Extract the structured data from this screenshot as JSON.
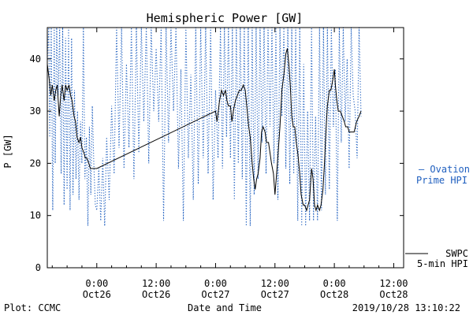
{
  "chart_data": {
    "type": "line",
    "title": "Hemispheric Power [GW]",
    "xlabel": "Date and Time",
    "ylabel": "P [GW]",
    "ylim": [
      0,
      46
    ],
    "yticks": [
      0,
      10,
      20,
      30,
      40
    ],
    "xticks": [
      {
        "hour": 0,
        "time": "0:00",
        "date": "Oct26"
      },
      {
        "hour": 12,
        "time": "12:00",
        "date": "Oct26"
      },
      {
        "hour": 24,
        "time": "0:00",
        "date": "Oct27"
      },
      {
        "hour": 36,
        "time": "12:00",
        "date": "Oct27"
      },
      {
        "hour": 48,
        "time": "0:00",
        "date": "Oct28"
      },
      {
        "hour": 60,
        "time": "12:00",
        "date": "Oct28"
      }
    ],
    "x_units": "hours since 2019-10-26 00:00",
    "xlim": [
      -10,
      62
    ],
    "series": [
      {
        "name": "SWPC 5-min HPI",
        "color": "#000000",
        "style": "solid",
        "points": [
          [
            -10,
            39
          ],
          [
            -9.6,
            36
          ],
          [
            -9.3,
            33
          ],
          [
            -9,
            35
          ],
          [
            -8.6,
            32
          ],
          [
            -8.3,
            34
          ],
          [
            -8,
            35
          ],
          [
            -7.6,
            29
          ],
          [
            -7.3,
            33
          ],
          [
            -7,
            35
          ],
          [
            -6.6,
            32
          ],
          [
            -6.3,
            35
          ],
          [
            -6,
            34
          ],
          [
            -5.6,
            35
          ],
          [
            -5.3,
            33
          ],
          [
            -5,
            32
          ],
          [
            -4.6,
            29
          ],
          [
            -4.3,
            28
          ],
          [
            -4,
            25
          ],
          [
            -3.6,
            24
          ],
          [
            -3.3,
            25
          ],
          [
            -3,
            23
          ],
          [
            -2.6,
            22
          ],
          [
            -2.3,
            21
          ],
          [
            -2,
            21
          ],
          [
            -1.6,
            20
          ],
          [
            -1.3,
            19
          ],
          [
            -1,
            19
          ],
          [
            0,
            19
          ],
          [
            24,
            30
          ],
          [
            24.3,
            28
          ],
          [
            24.8,
            32
          ],
          [
            25.2,
            34
          ],
          [
            25.6,
            33
          ],
          [
            26,
            34
          ],
          [
            26.3,
            32
          ],
          [
            26.6,
            31
          ],
          [
            27,
            31
          ],
          [
            27.3,
            28
          ],
          [
            27.6,
            30
          ],
          [
            28,
            32
          ],
          [
            28.4,
            33
          ],
          [
            28.8,
            34
          ],
          [
            29.2,
            34
          ],
          [
            29.6,
            35
          ],
          [
            30,
            34
          ],
          [
            30.3,
            31
          ],
          [
            30.7,
            27
          ],
          [
            31,
            25
          ],
          [
            31.4,
            20
          ],
          [
            31.7,
            17
          ],
          [
            32,
            15
          ],
          [
            32.3,
            17
          ],
          [
            32.6,
            18
          ],
          [
            33,
            21
          ],
          [
            33.3,
            26
          ],
          [
            33.6,
            27
          ],
          [
            34,
            26
          ],
          [
            34.3,
            24
          ],
          [
            34.7,
            24
          ],
          [
            35,
            22
          ],
          [
            35.3,
            20
          ],
          [
            35.7,
            18
          ],
          [
            36,
            14
          ],
          [
            36.5,
            20
          ],
          [
            37,
            27
          ],
          [
            37.4,
            34
          ],
          [
            37.8,
            37
          ],
          [
            38.2,
            41
          ],
          [
            38.5,
            42
          ],
          [
            38.8,
            39
          ],
          [
            39.1,
            35
          ],
          [
            39.4,
            29
          ],
          [
            39.7,
            27
          ],
          [
            40,
            27
          ],
          [
            40.3,
            24
          ],
          [
            40.6,
            22
          ],
          [
            41,
            18
          ],
          [
            41.3,
            14
          ],
          [
            41.7,
            12
          ],
          [
            42,
            12
          ],
          [
            42.4,
            11
          ],
          [
            42.7,
            12
          ],
          [
            43,
            13
          ],
          [
            43.4,
            19
          ],
          [
            43.7,
            17
          ],
          [
            44,
            12
          ],
          [
            44.3,
            11
          ],
          [
            44.6,
            12
          ],
          [
            45,
            11
          ],
          [
            45.3,
            12
          ],
          [
            45.7,
            15
          ],
          [
            46,
            20
          ],
          [
            46.3,
            26
          ],
          [
            46.6,
            31
          ],
          [
            47,
            34
          ],
          [
            47.3,
            34
          ],
          [
            47.7,
            36
          ],
          [
            48,
            38
          ],
          [
            48.2,
            35
          ],
          [
            48.5,
            32
          ],
          [
            48.8,
            30
          ],
          [
            49.2,
            30
          ],
          [
            49.6,
            29
          ],
          [
            50,
            28
          ],
          [
            50.3,
            27
          ],
          [
            50.7,
            27
          ],
          [
            51,
            26
          ],
          [
            51.5,
            26
          ],
          [
            52,
            26
          ],
          [
            52.5,
            28
          ],
          [
            53,
            29
          ],
          [
            53.4,
            30
          ]
        ]
      },
      {
        "name": "Ovation Prime HPI",
        "color": "#1f5fbf",
        "style": "dotted",
        "points": [
          [
            -10,
            40
          ],
          [
            -9.7,
            46
          ],
          [
            -9.5,
            25
          ],
          [
            -9.2,
            46
          ],
          [
            -8.9,
            11
          ],
          [
            -8.6,
            46
          ],
          [
            -8.4,
            20
          ],
          [
            -8.1,
            46
          ],
          [
            -7.8,
            33
          ],
          [
            -7.5,
            46
          ],
          [
            -7.2,
            18
          ],
          [
            -6.9,
            46
          ],
          [
            -6.6,
            12
          ],
          [
            -6.3,
            44
          ],
          [
            -6,
            15
          ],
          [
            -5.7,
            46
          ],
          [
            -5.4,
            11
          ],
          [
            -5.1,
            44
          ],
          [
            -4.8,
            14
          ],
          [
            -4.5,
            34
          ],
          [
            -4.2,
            17
          ],
          [
            -3.9,
            30
          ],
          [
            -3.6,
            13
          ],
          [
            -3.3,
            28
          ],
          [
            -3,
            20
          ],
          [
            -2.7,
            46
          ],
          [
            -2.4,
            17
          ],
          [
            -2.1,
            25
          ],
          [
            -1.8,
            8
          ],
          [
            -1.5,
            27
          ],
          [
            -1.2,
            14
          ],
          [
            -0.9,
            31
          ],
          [
            -0.6,
            20
          ],
          [
            -0.3,
            12
          ],
          [
            0,
            11
          ],
          [
            0.4,
            19
          ],
          [
            0.8,
            9
          ],
          [
            1.2,
            21
          ],
          [
            1.6,
            8
          ],
          [
            2,
            25
          ],
          [
            2.5,
            13
          ],
          [
            3,
            31
          ],
          [
            3.5,
            18
          ],
          [
            4,
            46
          ],
          [
            4.5,
            23
          ],
          [
            5,
            46
          ],
          [
            5.5,
            19
          ],
          [
            6,
            39
          ],
          [
            6.5,
            23
          ],
          [
            7,
            46
          ],
          [
            7.5,
            17
          ],
          [
            8,
            46
          ],
          [
            8.5,
            22
          ],
          [
            9,
            46
          ],
          [
            9.5,
            28
          ],
          [
            10,
            46
          ],
          [
            10.5,
            20
          ],
          [
            11,
            46
          ],
          [
            11.5,
            30
          ],
          [
            12,
            42
          ],
          [
            12.5,
            28
          ],
          [
            13,
            46
          ],
          [
            13.5,
            9
          ],
          [
            14,
            46
          ],
          [
            14.5,
            24
          ],
          [
            15,
            46
          ],
          [
            15.5,
            30
          ],
          [
            16,
            46
          ],
          [
            16.5,
            19
          ],
          [
            17,
            38
          ],
          [
            17.5,
            9
          ],
          [
            18,
            46
          ],
          [
            18.5,
            21
          ],
          [
            19,
            37
          ],
          [
            19.5,
            13
          ],
          [
            20,
            46
          ],
          [
            20.5,
            16
          ],
          [
            21,
            46
          ],
          [
            21.5,
            21
          ],
          [
            22,
            46
          ],
          [
            22.5,
            18
          ],
          [
            23,
            46
          ],
          [
            23.5,
            13
          ],
          [
            24,
            34
          ],
          [
            24.5,
            21
          ],
          [
            25,
            46
          ],
          [
            25.4,
            19
          ],
          [
            25.8,
            46
          ],
          [
            26.2,
            25
          ],
          [
            26.6,
            46
          ],
          [
            27,
            21
          ],
          [
            27.4,
            46
          ],
          [
            27.8,
            13
          ],
          [
            28.2,
            46
          ],
          [
            28.6,
            20
          ],
          [
            29,
            46
          ],
          [
            29.4,
            17
          ],
          [
            29.8,
            46
          ],
          [
            30.2,
            8
          ],
          [
            30.6,
            46
          ],
          [
            31,
            8
          ],
          [
            31.4,
            46
          ],
          [
            31.8,
            14
          ],
          [
            32.2,
            46
          ],
          [
            32.6,
            17
          ],
          [
            33,
            46
          ],
          [
            33.4,
            24
          ],
          [
            33.8,
            46
          ],
          [
            34.2,
            18
          ],
          [
            34.6,
            46
          ],
          [
            35,
            27
          ],
          [
            35.4,
            46
          ],
          [
            35.8,
            20
          ],
          [
            36.2,
            46
          ],
          [
            36.6,
            13
          ],
          [
            37,
            46
          ],
          [
            37.4,
            29
          ],
          [
            37.8,
            46
          ],
          [
            38.2,
            19
          ],
          [
            38.6,
            46
          ],
          [
            39,
            16
          ],
          [
            39.4,
            46
          ],
          [
            39.8,
            18
          ],
          [
            40.2,
            46
          ],
          [
            40.6,
            9
          ],
          [
            41,
            46
          ],
          [
            41.4,
            8
          ],
          [
            41.8,
            39
          ],
          [
            42.2,
            8
          ],
          [
            42.6,
            30
          ],
          [
            43,
            9
          ],
          [
            43.4,
            46
          ],
          [
            43.8,
            9
          ],
          [
            44.2,
            29
          ],
          [
            44.6,
            9
          ],
          [
            45,
            46
          ],
          [
            45.4,
            11
          ],
          [
            45.8,
            46
          ],
          [
            46.2,
            14
          ],
          [
            46.6,
            46
          ],
          [
            47,
            15
          ],
          [
            47.4,
            46
          ],
          [
            47.8,
            27
          ],
          [
            48.2,
            38
          ],
          [
            48.6,
            9
          ],
          [
            49,
            46
          ],
          [
            49.4,
            24
          ],
          [
            49.8,
            46
          ],
          [
            50.2,
            28
          ],
          [
            50.6,
            40
          ],
          [
            51,
            19
          ],
          [
            51.4,
            46
          ],
          [
            51.8,
            33
          ],
          [
            52.2,
            30
          ],
          [
            52.6,
            21
          ],
          [
            53,
            46
          ],
          [
            53.4,
            29
          ]
        ]
      }
    ],
    "legend": [
      {
        "line1": "— Ovation",
        "line2": "Prime HPI",
        "color": "#1f5fbf"
      },
      {
        "line1": "SWPC",
        "line2": "5-min HPI",
        "color": "#000000"
      }
    ]
  },
  "footer": {
    "left": "Plot: CCMC",
    "right": "2019/10/28 13:10:22"
  }
}
